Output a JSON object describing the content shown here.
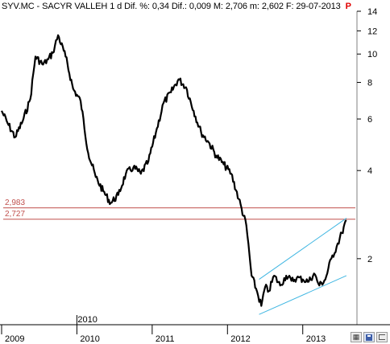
{
  "header": {
    "symbol": "SYV.MC",
    "name": "SACYR VALLEH",
    "period": "1 d",
    "diff_pct_label": "Dif. %:",
    "diff_pct": "0,34",
    "diff_label": "Dif.:",
    "diff": "0,009",
    "max_label": "M:",
    "max": "2,706",
    "min_label": "m:",
    "min": "2,602",
    "date_label": "F:",
    "date": "29-07-2013",
    "flag": "P"
  },
  "levels": [
    {
      "label": "2,983",
      "value": 2.983,
      "color": "#c0504d"
    },
    {
      "label": "2,727",
      "value": 2.727,
      "color": "#c0504d"
    }
  ],
  "toolbar": {
    "buttons": [
      {
        "name": "chart-tool-icon",
        "glyph": "▦"
      },
      {
        "name": "save-icon",
        "glyph": ""
      },
      {
        "name": "pin-icon",
        "glyph": ""
      }
    ]
  },
  "chart_data": {
    "type": "line",
    "scale": "log",
    "ylim": [
      1.3,
      14
    ],
    "yticks": [
      {
        "value": 2,
        "label": "2"
      },
      {
        "value": 4,
        "label": "4"
      },
      {
        "value": 6,
        "label": "6"
      },
      {
        "value": 8,
        "label": "8"
      },
      {
        "value": 10,
        "label": "10"
      },
      {
        "value": 12,
        "label": "12"
      },
      {
        "value": 14,
        "label": "14"
      }
    ],
    "xlim": [
      2009.0,
      2013.72
    ],
    "xticks": [
      {
        "value": 2009.0,
        "label": "2009"
      },
      {
        "value": 2010.0,
        "label": "2010"
      },
      {
        "value": 2011.0,
        "label": "2011"
      },
      {
        "value": 2012.0,
        "label": "2012"
      },
      {
        "value": 2013.0,
        "label": "2013"
      }
    ],
    "extra_xlabel": {
      "value": 2010.0,
      "label": "2010"
    },
    "series": [
      {
        "x": [
          2009.0,
          2009.08,
          2009.18,
          2009.28,
          2009.38,
          2009.45,
          2009.55,
          2009.62,
          2009.68,
          2009.75,
          2009.85,
          2009.95,
          2010.05,
          2010.15,
          2010.25,
          2010.35,
          2010.45,
          2010.55,
          2010.65,
          2010.75,
          2010.85,
          2010.95,
          2011.05,
          2011.15,
          2011.25,
          2011.35,
          2011.45,
          2011.55,
          2011.65,
          2011.75,
          2011.85,
          2011.95,
          2012.05,
          2012.15,
          2012.25,
          2012.32,
          2012.38,
          2012.45,
          2012.5,
          2012.55,
          2012.62,
          2012.7,
          2012.78,
          2012.85,
          2012.92,
          2013.0,
          2013.08,
          2013.15,
          2013.22,
          2013.3,
          2013.38,
          2013.45,
          2013.52,
          2013.58
        ],
        "values": [
          6.4,
          5.8,
          5.2,
          5.9,
          7.0,
          9.8,
          9.2,
          9.6,
          10.1,
          11.6,
          9.8,
          7.6,
          6.9,
          4.6,
          3.8,
          3.4,
          3.1,
          3.3,
          3.9,
          4.1,
          3.9,
          4.3,
          5.4,
          6.8,
          7.4,
          8.2,
          7.7,
          6.4,
          5.4,
          5.0,
          4.5,
          4.2,
          3.9,
          3.2,
          2.6,
          1.75,
          1.58,
          1.38,
          1.6,
          1.55,
          1.75,
          1.62,
          1.75,
          1.68,
          1.72,
          1.7,
          1.67,
          1.78,
          1.62,
          1.7,
          2.0,
          2.2,
          2.45,
          2.706
        ]
      }
    ],
    "channel": {
      "upper": {
        "x": [
          2012.42,
          2013.58
        ],
        "values": [
          1.7,
          2.75
        ]
      },
      "lower": {
        "x": [
          2012.42,
          2013.58
        ],
        "values": [
          1.29,
          1.75
        ]
      },
      "color": "#3fb6e2"
    }
  }
}
